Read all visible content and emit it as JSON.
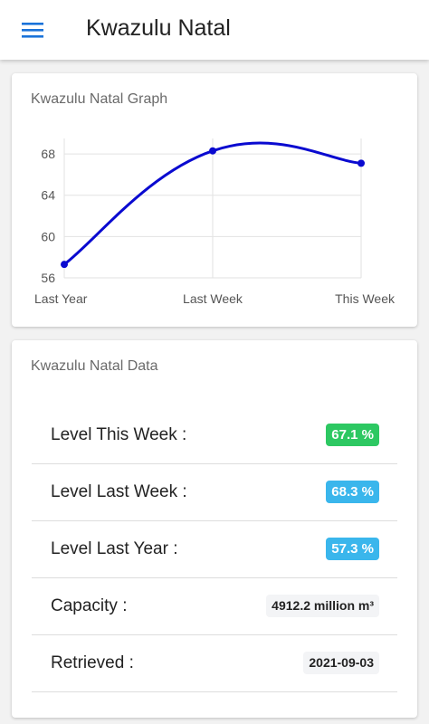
{
  "appbar": {
    "menu_icon": "hamburger-menu-icon",
    "title": "Kwazulu Natal"
  },
  "graph_card": {
    "title": "Kwazulu Natal Graph"
  },
  "data_card": {
    "title": "Kwazulu Natal Data",
    "rows": [
      {
        "label": "Level This Week :",
        "value": "67.1 %",
        "badge": "green"
      },
      {
        "label": "Level Last Week :",
        "value": "68.3 %",
        "badge": "blue"
      },
      {
        "label": "Level Last Year :",
        "value": "57.3 %",
        "badge": "blue"
      },
      {
        "label": "Capacity :",
        "value": "4912.2 million m³",
        "badge": "plain"
      },
      {
        "label": "Retrieved :",
        "value": "2021-09-03",
        "badge": "plain"
      }
    ]
  },
  "colors": {
    "accent": "#1a73d9",
    "line": "#0a0ad0",
    "badge_green": "#2dc862",
    "badge_blue": "#3ab6ec"
  },
  "chart_data": {
    "type": "line",
    "categories": [
      "Last Year",
      "Last Week",
      "This Week"
    ],
    "values": [
      57.3,
      68.3,
      67.1
    ],
    "ylim": [
      56,
      69.5
    ],
    "yticks": [
      56,
      60,
      64,
      68
    ],
    "grid": true,
    "smooth": true
  }
}
